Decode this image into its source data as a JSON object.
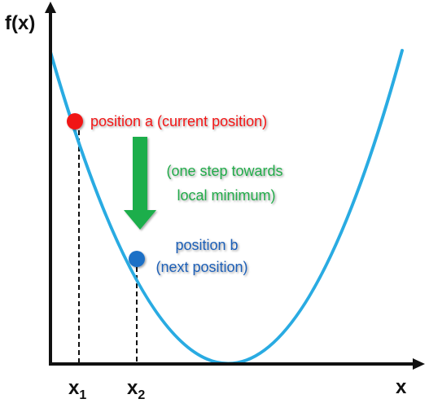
{
  "diagram": {
    "y_axis_label": "f(x)",
    "x_axis_label": "x",
    "x1_label": {
      "base": "x",
      "sub": "1"
    },
    "x2_label": {
      "base": "x",
      "sub": "2"
    },
    "position_a": {
      "label": "position a (current position)",
      "color": "#f01616"
    },
    "step_note": {
      "line1": "(one step towards",
      "line2": "local minimum)",
      "color": "#22aa4a"
    },
    "position_b": {
      "line1": "position b",
      "line2": "(next position)",
      "color": "#1f5fb6"
    },
    "curve_color": "#29abe2",
    "arrow_color": "#1fae4b",
    "axis_color": "#111111"
  }
}
